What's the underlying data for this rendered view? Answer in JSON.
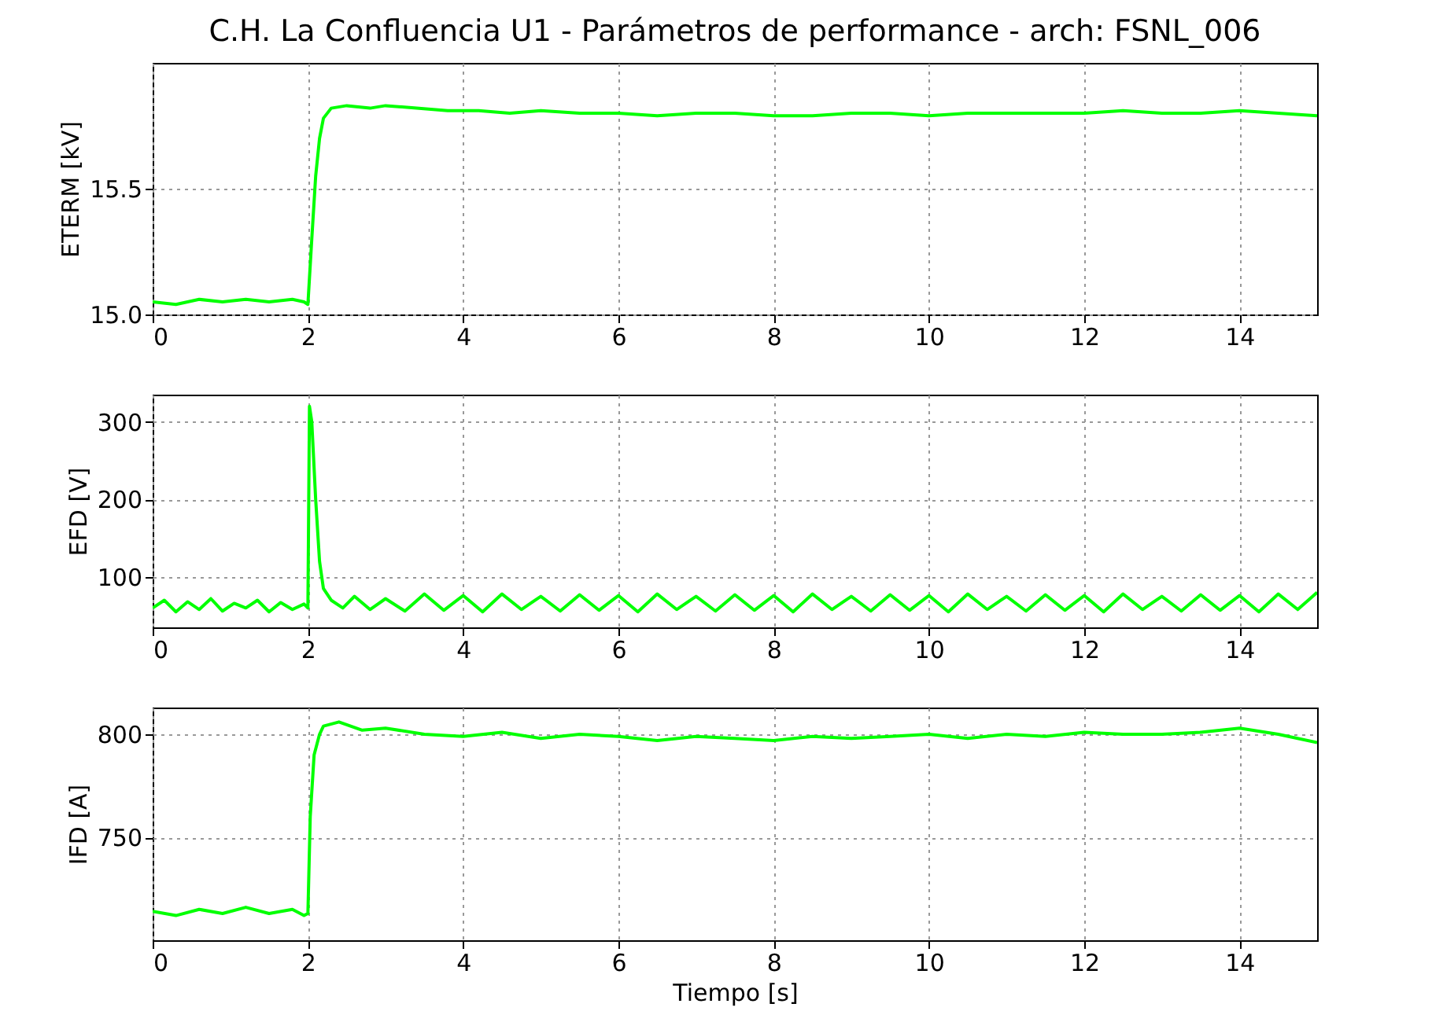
{
  "chart_data": [
    {
      "type": "line",
      "title": "C.H. La Confluencia U1 - Parámetros de performance - arch: FSNL_006",
      "ylabel": "ETERM [kV]",
      "xlim": [
        0,
        15
      ],
      "xticks": [
        0,
        2,
        4,
        6,
        8,
        10,
        12,
        14
      ],
      "ylim": [
        15,
        16
      ],
      "yticks": [
        {
          "value": 15,
          "label": "15.0"
        },
        15.5
      ],
      "grid": true,
      "series": [
        {
          "color": "#00ff00",
          "x": [
            0,
            0.3,
            0.6,
            0.9,
            1.2,
            1.5,
            1.8,
            1.95,
            2.0,
            2.05,
            2.1,
            2.15,
            2.2,
            2.3,
            2.5,
            2.8,
            3.0,
            3.4,
            3.8,
            4.2,
            4.6,
            5.0,
            5.5,
            6.0,
            6.5,
            7.0,
            7.5,
            8.0,
            8.5,
            9.0,
            9.5,
            10.0,
            10.5,
            11.0,
            11.5,
            12.0,
            12.5,
            13.0,
            13.5,
            14.0,
            14.5,
            15
          ],
          "values": [
            15.05,
            15.04,
            15.06,
            15.05,
            15.06,
            15.05,
            15.06,
            15.05,
            15.04,
            15.3,
            15.55,
            15.7,
            15.78,
            15.82,
            15.83,
            15.82,
            15.83,
            15.82,
            15.81,
            15.81,
            15.8,
            15.81,
            15.8,
            15.8,
            15.79,
            15.8,
            15.8,
            15.79,
            15.79,
            15.8,
            15.8,
            15.79,
            15.8,
            15.8,
            15.8,
            15.8,
            15.81,
            15.8,
            15.8,
            15.81,
            15.8,
            15.79
          ]
        }
      ]
    },
    {
      "type": "line",
      "ylabel": "EFD [V]",
      "xlim": [
        0,
        15
      ],
      "xticks": [
        0,
        2,
        4,
        6,
        8,
        10,
        12,
        14
      ],
      "ylim": [
        35,
        335
      ],
      "yticks": [
        100,
        200,
        300
      ],
      "grid": true,
      "series": [
        {
          "color": "#00ff00",
          "x": [
            0,
            0.15,
            0.3,
            0.45,
            0.6,
            0.75,
            0.9,
            1.05,
            1.2,
            1.35,
            1.5,
            1.65,
            1.8,
            1.95,
            2.0,
            2.02,
            2.05,
            2.1,
            2.15,
            2.2,
            2.3,
            2.45,
            2.6,
            2.8,
            3.0,
            3.25,
            3.5,
            3.75,
            4.0,
            4.25,
            4.5,
            4.75,
            5.0,
            5.25,
            5.5,
            5.75,
            6.0,
            6.25,
            6.5,
            6.75,
            7.0,
            7.25,
            7.5,
            7.75,
            8.0,
            8.25,
            8.5,
            8.75,
            9.0,
            9.25,
            9.5,
            9.75,
            10.0,
            10.25,
            10.5,
            10.75,
            11.0,
            11.25,
            11.5,
            11.75,
            12.0,
            12.25,
            12.5,
            12.75,
            13.0,
            13.25,
            13.5,
            13.75,
            14.0,
            14.25,
            14.5,
            14.75,
            15
          ],
          "values": [
            60,
            70,
            55,
            68,
            58,
            72,
            56,
            66,
            60,
            70,
            55,
            67,
            58,
            65,
            60,
            320,
            300,
            200,
            120,
            85,
            70,
            60,
            75,
            58,
            72,
            56,
            78,
            57,
            76,
            55,
            78,
            58,
            75,
            56,
            77,
            57,
            76,
            55,
            78,
            58,
            75,
            56,
            77,
            57,
            76,
            55,
            78,
            58,
            75,
            56,
            77,
            57,
            76,
            55,
            78,
            58,
            75,
            56,
            77,
            57,
            76,
            55,
            78,
            58,
            75,
            56,
            77,
            57,
            76,
            55,
            78,
            58,
            80
          ]
        }
      ]
    },
    {
      "type": "line",
      "ylabel": "IFD [A]",
      "xlabel": "Tiempo [s]",
      "xlim": [
        0,
        15
      ],
      "xticks": [
        0,
        2,
        4,
        6,
        8,
        10,
        12,
        14
      ],
      "ylim": [
        700,
        813
      ],
      "yticks": [
        750,
        800
      ],
      "grid": true,
      "series": [
        {
          "color": "#00ff00",
          "x": [
            0,
            0.3,
            0.6,
            0.9,
            1.2,
            1.5,
            1.8,
            1.95,
            2.0,
            2.03,
            2.08,
            2.15,
            2.2,
            2.4,
            2.7,
            3.0,
            3.5,
            4.0,
            4.5,
            5.0,
            5.5,
            6.0,
            6.5,
            7.0,
            7.5,
            8.0,
            8.5,
            9.0,
            9.5,
            10.0,
            10.5,
            11.0,
            11.5,
            12.0,
            12.5,
            13.0,
            13.5,
            14.0,
            14.5,
            15
          ],
          "values": [
            714,
            712,
            715,
            713,
            716,
            713,
            715,
            712,
            713,
            760,
            790,
            800,
            804,
            806,
            802,
            803,
            800,
            799,
            801,
            798,
            800,
            799,
            797,
            799,
            798,
            797,
            799,
            798,
            799,
            800,
            798,
            800,
            799,
            801,
            800,
            800,
            801,
            803,
            800,
            796
          ]
        }
      ]
    }
  ]
}
